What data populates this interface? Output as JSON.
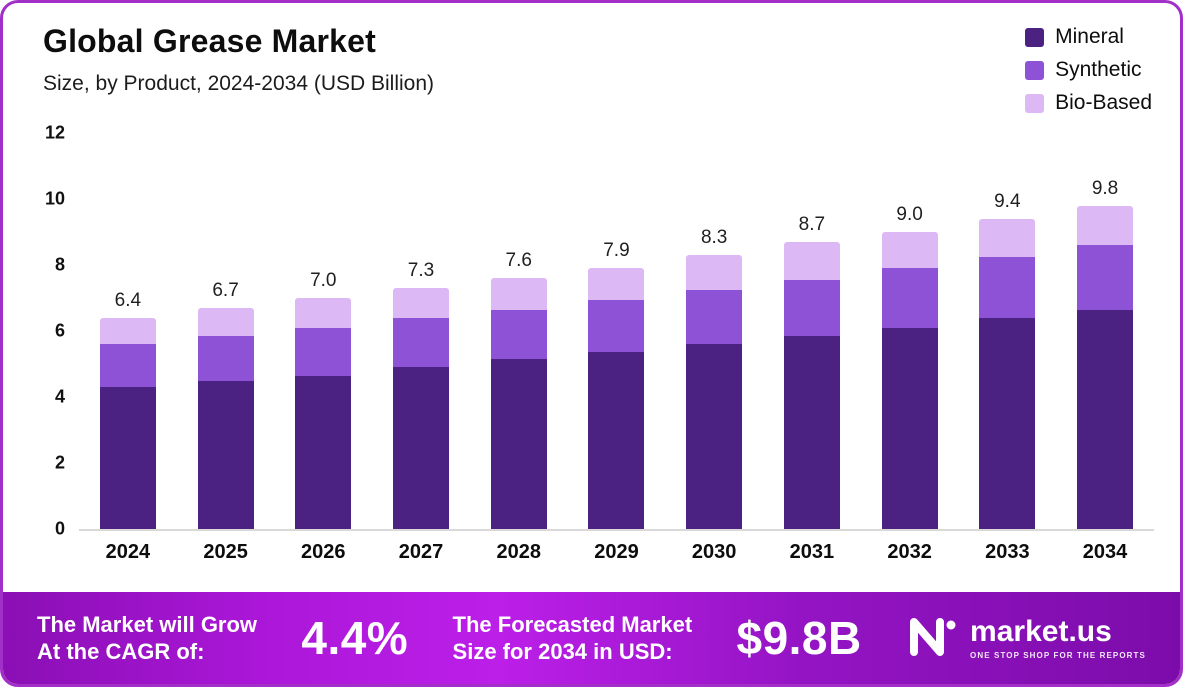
{
  "header": {
    "title": "Global Grease Market",
    "subtitle": "Size, by Product, 2024-2034 (USD Billion)"
  },
  "legend": [
    {
      "label": "Mineral",
      "color": "#4b2182"
    },
    {
      "label": "Synthetic",
      "color": "#8d52d6"
    },
    {
      "label": "Bio-Based",
      "color": "#dcb9f5"
    }
  ],
  "chart_data": {
    "type": "bar",
    "stacked": true,
    "title": "Global Grease Market",
    "subtitle": "Size, by Product, 2024-2034 (USD Billion)",
    "legend_position": "top-right",
    "categories": [
      "2024",
      "2025",
      "2026",
      "2027",
      "2028",
      "2029",
      "2030",
      "2031",
      "2032",
      "2033",
      "2034"
    ],
    "series": [
      {
        "name": "Mineral",
        "color": "#4b2182",
        "values": [
          4.3,
          4.5,
          4.65,
          4.9,
          5.15,
          5.35,
          5.6,
          5.85,
          6.1,
          6.4,
          6.65
        ]
      },
      {
        "name": "Synthetic",
        "color": "#8d52d6",
        "values": [
          1.3,
          1.35,
          1.45,
          1.5,
          1.5,
          1.6,
          1.65,
          1.7,
          1.8,
          1.85,
          1.95
        ]
      },
      {
        "name": "Bio-Based",
        "color": "#dcb9f5",
        "values": [
          0.8,
          0.85,
          0.9,
          0.9,
          0.95,
          0.95,
          1.05,
          1.15,
          1.1,
          1.15,
          1.2
        ]
      }
    ],
    "totals": [
      6.4,
      6.7,
      7.0,
      7.3,
      7.6,
      7.9,
      8.3,
      8.7,
      9.0,
      9.4,
      9.8
    ],
    "ylim": [
      0,
      12
    ],
    "yticks": [
      12,
      10,
      8,
      6,
      4,
      2,
      0
    ],
    "grid": false
  },
  "banner": {
    "cagr_label_line1": "The Market will Grow",
    "cagr_label_line2": "At the CAGR of:",
    "cagr_value": "4.4%",
    "forecast_label_line1": "The Forecasted Market",
    "forecast_label_line2": "Size for 2034 in USD:",
    "forecast_value": "$9.8B",
    "brand": "market.us",
    "brand_tagline": "ONE STOP SHOP FOR THE REPORTS"
  }
}
